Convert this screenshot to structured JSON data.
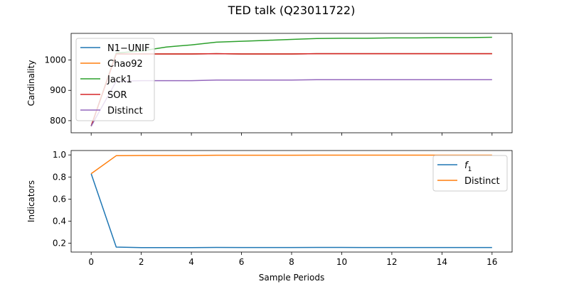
{
  "figure": {
    "title": "TED talk (Q23011722)"
  },
  "chart_data": [
    {
      "type": "line",
      "ylabel": "Cardinality",
      "xlim": [
        -0.8,
        16.8
      ],
      "ylim": [
        760,
        1088
      ],
      "xticks": [
        0,
        2,
        4,
        6,
        8,
        10,
        12,
        14,
        16
      ],
      "yticks": [
        800,
        900,
        1000
      ],
      "show_xtick_labels": false,
      "legend_position": "upper-left",
      "x": [
        0,
        1,
        2,
        3,
        4,
        5,
        6,
        7,
        8,
        9,
        10,
        11,
        12,
        13,
        14,
        15,
        16
      ],
      "series": [
        {
          "name": "N1−UNIF",
          "color": "#1f77b4",
          "values": [
            782,
            1020,
            1020,
            1020,
            1020,
            1021,
            1020,
            1020,
            1020,
            1021,
            1021,
            1021,
            1021,
            1021,
            1021,
            1021,
            1021
          ]
        },
        {
          "name": "Chao92",
          "color": "#ff7f0e",
          "values": [
            782,
            1020,
            1020,
            1020,
            1020,
            1021,
            1020,
            1020,
            1020,
            1021,
            1021,
            1021,
            1021,
            1021,
            1021,
            1021,
            1021
          ]
        },
        {
          "name": "Jack1",
          "color": "#2ca02c",
          "values": [
            782,
            1023,
            1030,
            1043,
            1050,
            1059,
            1062,
            1065,
            1068,
            1071,
            1072,
            1072,
            1073,
            1073,
            1074,
            1074,
            1075
          ]
        },
        {
          "name": "SOR",
          "color": "#d62728",
          "values": [
            782,
            1020,
            1020,
            1020,
            1020,
            1021,
            1020,
            1020,
            1020,
            1021,
            1021,
            1021,
            1021,
            1021,
            1021,
            1021,
            1021
          ]
        },
        {
          "name": "Distinct",
          "color": "#9467bd",
          "values": [
            782,
            930,
            932,
            932,
            932,
            934,
            934,
            934,
            934,
            935,
            935,
            935,
            935,
            935,
            935,
            935,
            935
          ]
        }
      ]
    },
    {
      "type": "line",
      "xlabel": "Sample Periods",
      "ylabel": "Indicators",
      "xlim": [
        -0.8,
        16.8
      ],
      "ylim": [
        0.12,
        1.04
      ],
      "xticks": [
        0,
        2,
        4,
        6,
        8,
        10,
        12,
        14,
        16
      ],
      "yticks": [
        0.2,
        0.4,
        0.6,
        0.8,
        1.0
      ],
      "ytick_labels": [
        "0.2",
        "0.4",
        "0.6",
        "0.8",
        "1.0"
      ],
      "show_xtick_labels": true,
      "legend_position": "upper-right",
      "x": [
        0,
        1,
        2,
        3,
        4,
        5,
        6,
        7,
        8,
        9,
        10,
        11,
        12,
        13,
        14,
        15,
        16
      ],
      "series": [
        {
          "name": "f",
          "name_subscript": "1",
          "color": "#1f77b4",
          "values": [
            0.83,
            0.165,
            0.16,
            0.16,
            0.16,
            0.162,
            0.161,
            0.161,
            0.161,
            0.162,
            0.162,
            0.161,
            0.161,
            0.161,
            0.161,
            0.161,
            0.161
          ]
        },
        {
          "name": "Distinct",
          "color": "#ff7f0e",
          "values": [
            0.83,
            0.993,
            0.995,
            0.995,
            0.995,
            0.997,
            0.997,
            0.997,
            0.997,
            0.998,
            0.998,
            0.998,
            0.998,
            0.998,
            0.998,
            0.998,
            0.998
          ]
        }
      ]
    }
  ]
}
